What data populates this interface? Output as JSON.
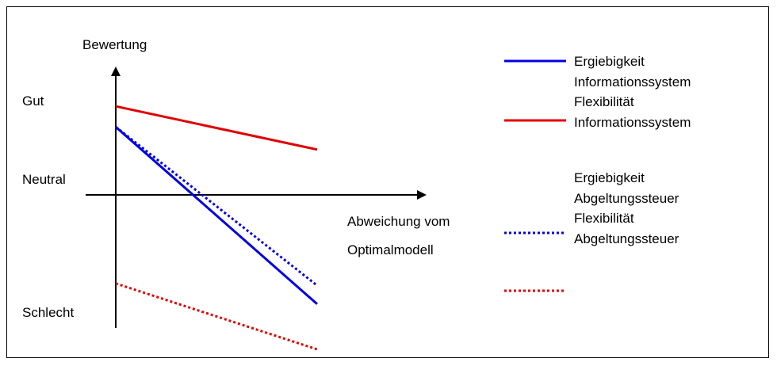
{
  "chart_data": {
    "type": "line",
    "ylabel": "Bewertung",
    "xlabel_lines": [
      "Abweichung vom",
      "Optimalmodell"
    ],
    "y_levels": [
      "Gut",
      "Neutral",
      "Schlecht"
    ],
    "series": [
      {
        "name_lines": [
          "Ergiebigkeit",
          "Informationssystem"
        ],
        "color": "#0000e0",
        "style": "solid",
        "points": [
          [
            0,
            0.33
          ],
          [
            1,
            -0.53
          ]
        ]
      },
      {
        "name_lines": [
          "Flexibilität",
          "Informationssystem"
        ],
        "color": "#e00000",
        "style": "solid",
        "points": [
          [
            0,
            0.43
          ],
          [
            1,
            0.22
          ]
        ]
      },
      {
        "name_lines": [
          "Ergiebigkeit",
          "Abgeltungssteuer"
        ],
        "color": "#0000e0",
        "style": "dotted",
        "points": [
          [
            0,
            0.33
          ],
          [
            1,
            -0.44
          ]
        ]
      },
      {
        "name_lines": [
          "Flexibilität",
          "Abgeltungssteuer"
        ],
        "color": "#e00000",
        "style": "dotted",
        "points": [
          [
            0,
            -0.43
          ],
          [
            1,
            -0.75
          ]
        ]
      }
    ]
  }
}
